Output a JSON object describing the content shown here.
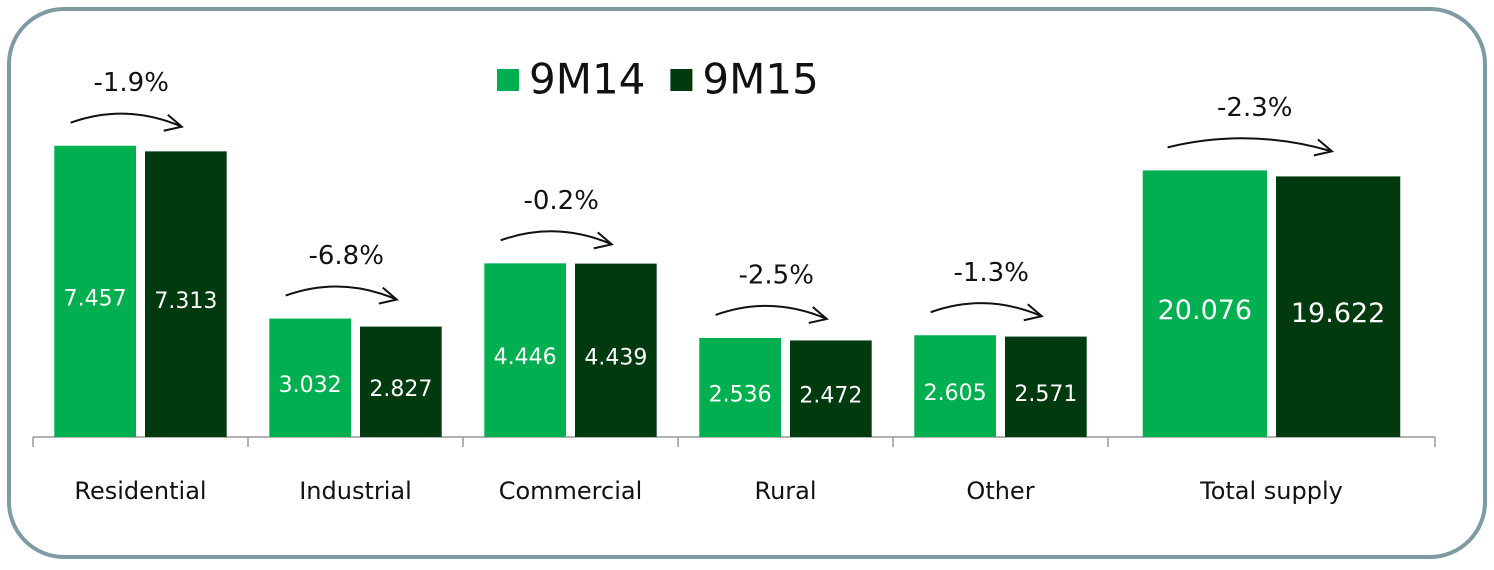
{
  "chart_data": [
    {
      "type": "bar",
      "categories": [
        "Residential",
        "Industrial",
        "Commercial",
        "Rural",
        "Other"
      ],
      "series": [
        {
          "name": "9M14",
          "color": "#00b050",
          "values": [
            7.457,
            3.032,
            4.446,
            2.536,
            2.605
          ]
        },
        {
          "name": "9M15",
          "color": "#013a0e",
          "values": [
            7.313,
            2.827,
            4.439,
            2.472,
            2.571
          ]
        }
      ],
      "annotations": [
        "-1.9%",
        "-6.8%",
        "-0.2%",
        "-2.5%",
        "-1.3%"
      ],
      "ylim": [
        0,
        8.5
      ]
    },
    {
      "type": "bar",
      "categories": [
        "Total supply"
      ],
      "series": [
        {
          "color": "#00b050",
          "values": [
            20.076
          ]
        },
        {
          "color": "#013a0e",
          "values": [
            19.622
          ]
        }
      ],
      "annotations": [
        "-2.3%"
      ],
      "ylim": [
        0,
        25
      ]
    }
  ]
}
